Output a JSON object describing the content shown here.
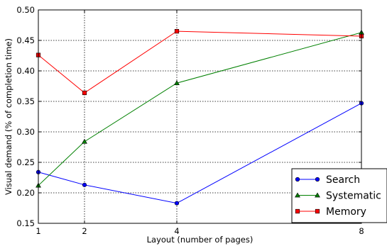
{
  "chart_data": {
    "type": "line",
    "title": "",
    "xlabel": "Layout (number of pages)",
    "ylabel": "Visual demand (% of completion time)",
    "x": [
      1,
      2,
      4,
      8
    ],
    "xlim": [
      1,
      8
    ],
    "ylim": [
      0.15,
      0.5
    ],
    "xticks": [
      "1",
      "2",
      "4",
      "8"
    ],
    "yticks": [
      "0.15",
      "0.20",
      "0.25",
      "0.30",
      "0.35",
      "0.40",
      "0.45",
      "0.50"
    ],
    "grid": "dotted",
    "legend_position": "bottom-right",
    "series": [
      {
        "name": "Search",
        "color": "#0000ff",
        "marker": "circle",
        "values": [
          0.234,
          0.213,
          0.183,
          0.347
        ]
      },
      {
        "name": "Systematic",
        "color": "#008000",
        "marker": "triangle",
        "values": [
          0.212,
          0.284,
          0.38,
          0.463
        ]
      },
      {
        "name": "Memory",
        "color": "#ff0000",
        "marker": "square",
        "values": [
          0.426,
          0.364,
          0.465,
          0.457
        ]
      }
    ]
  }
}
